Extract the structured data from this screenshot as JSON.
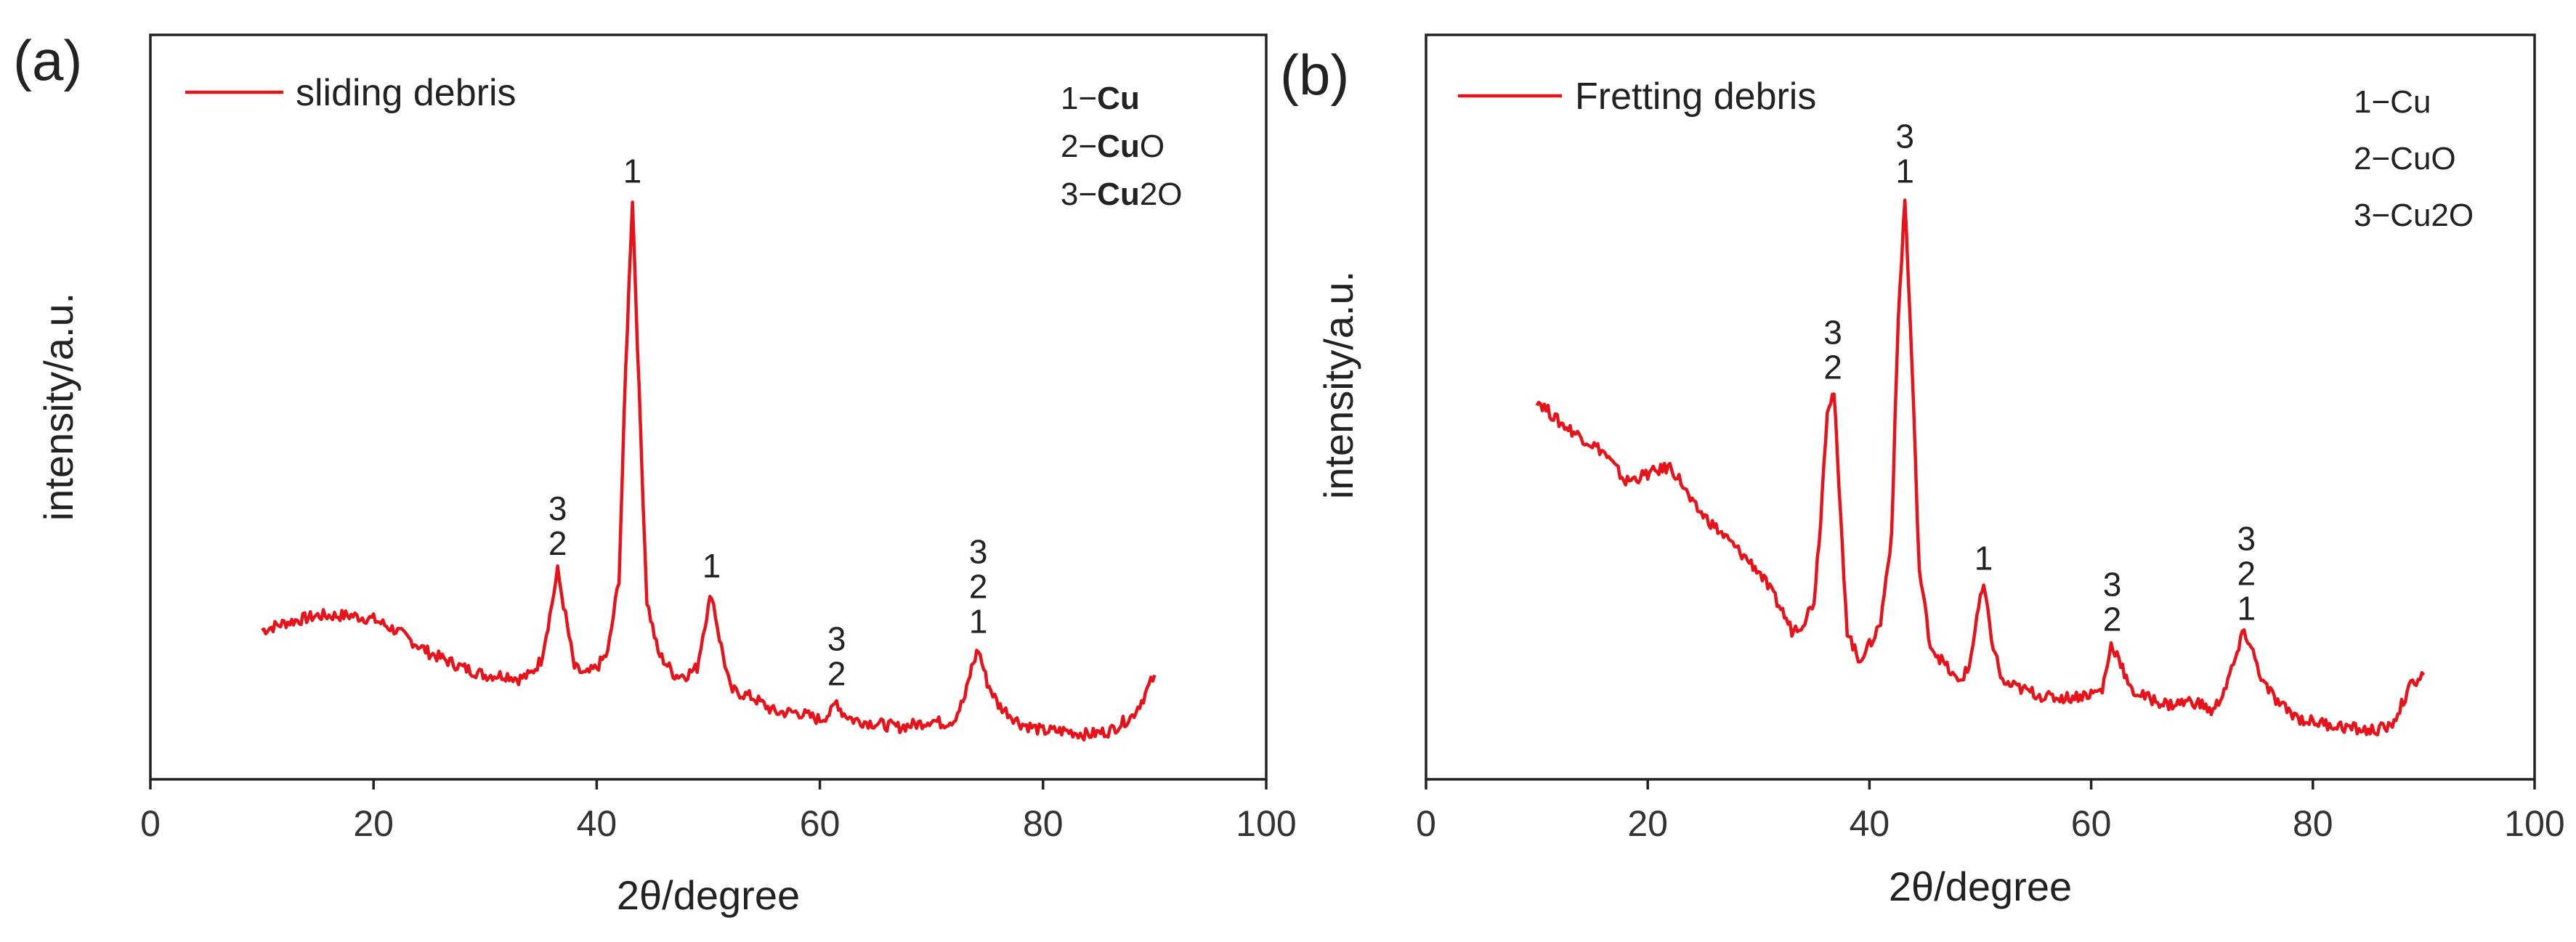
{
  "chart_data": [
    {
      "panel": "(a)",
      "type": "line",
      "xlabel": "2θ/degree",
      "ylabel": "intensity/a.u.",
      "xlim": [
        0,
        100
      ],
      "ylim": [
        0,
        100
      ],
      "xticks": [
        0,
        20,
        40,
        60,
        80,
        100
      ],
      "legend": {
        "label": "sliding debris",
        "position": "top-left"
      },
      "key": [
        {
          "num": "1−",
          "name": "Cu",
          "suffix": "",
          "bold": true
        },
        {
          "num": "2−",
          "name": "Cu",
          "suffix": "O",
          "bold": true
        },
        {
          "num": "3−",
          "name": "Cu",
          "suffix": "2O",
          "bold": true
        }
      ],
      "series": [
        {
          "name": "sliding debris",
          "x": [
            10,
            12,
            15,
            18,
            20,
            22,
            25,
            28,
            30,
            32,
            33,
            34,
            35,
            35.8,
            36.5,
            37.2,
            38,
            39,
            40,
            41,
            42,
            42.6,
            43.2,
            43.8,
            44.5,
            45.5,
            47,
            48,
            49,
            49.7,
            50.3,
            51,
            52,
            54,
            56,
            58,
            60,
            61,
            61.5,
            62,
            63,
            65,
            67,
            69,
            70,
            71,
            72,
            73,
            73.6,
            74.2,
            75,
            76,
            78,
            80,
            82,
            84,
            86,
            88,
            89,
            90
          ],
          "y": [
            20,
            21,
            22,
            22,
            21.5,
            20,
            17,
            15,
            14,
            14,
            13.5,
            14,
            16,
            22,
            28,
            22,
            15,
            14,
            15,
            17,
            27,
            55,
            78,
            52,
            24,
            17,
            14,
            14,
            15,
            21,
            25,
            19,
            12,
            11,
            9,
            9,
            8,
            9,
            10.5,
            9,
            8,
            7.5,
            7,
            7.5,
            8,
            7.5,
            8,
            11,
            15,
            17.5,
            13,
            10,
            7.5,
            6.5,
            6.5,
            6,
            6.5,
            8.5,
            11,
            14
          ]
        }
      ],
      "peak_labels": [
        {
          "x": 36.5,
          "lines": [
            "3",
            "2"
          ]
        },
        {
          "x": 43.2,
          "lines": [
            "1"
          ]
        },
        {
          "x": 50.3,
          "lines": [
            "1"
          ]
        },
        {
          "x": 61.5,
          "lines": [
            "3",
            "2"
          ]
        },
        {
          "x": 74.2,
          "lines": [
            "3",
            "2",
            "1"
          ]
        }
      ]
    },
    {
      "panel": "(b)",
      "type": "line",
      "xlabel": "2θ/degree",
      "ylabel": "intensity/a.u.",
      "xlim": [
        0,
        100
      ],
      "ylim": [
        0,
        100
      ],
      "xticks": [
        0,
        20,
        40,
        60,
        80,
        100
      ],
      "legend": {
        "label": "Fretting debris",
        "position": "top-left"
      },
      "key": [
        {
          "num": "1−",
          "name": "Cu",
          "suffix": "",
          "bold": false
        },
        {
          "num": "2−",
          "name": "Cu",
          "suffix": "O",
          "bold": false
        },
        {
          "num": "3−",
          "name": "Cu",
          "suffix": "2O",
          "bold": false
        }
      ],
      "series": [
        {
          "name": "Fretting debris",
          "x": [
            10,
            12,
            14,
            16,
            18,
            20,
            22,
            23,
            24,
            26,
            28,
            30,
            32,
            33,
            34,
            35,
            35.6,
            36.2,
            36.8,
            37.4,
            38,
            39,
            40,
            41,
            42,
            42.6,
            43.2,
            43.8,
            44.5,
            45.5,
            47,
            48,
            49,
            49.7,
            50.3,
            51,
            52,
            54,
            56,
            58,
            60,
            61,
            61.8,
            62.5,
            63.5,
            65,
            67,
            69,
            70,
            71,
            72,
            73,
            73.8,
            74.6,
            75.5,
            77,
            79,
            81,
            83,
            85,
            87,
            88,
            89,
            90
          ],
          "y": [
            51,
            48,
            46,
            44,
            40,
            41,
            42,
            40,
            37,
            34,
            31,
            28,
            23,
            20,
            21,
            24,
            35,
            50,
            52,
            35,
            20,
            16,
            18,
            21,
            33,
            62,
            78,
            57,
            28,
            18,
            15,
            13,
            15,
            22,
            26,
            19,
            13,
            12,
            11,
            11,
            11.5,
            12,
            18,
            16.5,
            12,
            11,
            10,
            10.5,
            10,
            9,
            12,
            16,
            20,
            17,
            13,
            10,
            8,
            7.5,
            7,
            6.5,
            7,
            10,
            13,
            14
          ]
        }
      ],
      "peak_labels": [
        {
          "x": 36.7,
          "lines": [
            "3",
            "2"
          ]
        },
        {
          "x": 43.2,
          "lines": [
            "3",
            "1"
          ]
        },
        {
          "x": 50.3,
          "lines": [
            "1"
          ]
        },
        {
          "x": 61.9,
          "lines": [
            "3",
            "2"
          ]
        },
        {
          "x": 74.0,
          "lines": [
            "3",
            "2",
            "1"
          ]
        }
      ]
    }
  ]
}
